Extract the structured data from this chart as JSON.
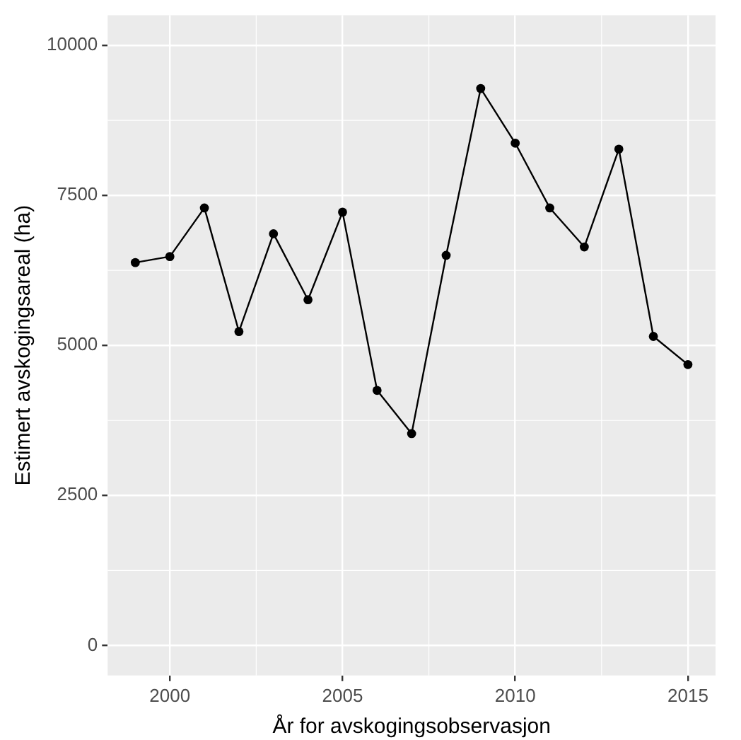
{
  "chart_data": {
    "type": "line",
    "xlabel": "År for avskogingsobservasjon",
    "ylabel": "Estimert avskogingsareal (ha)",
    "x": [
      1999,
      2000,
      2001,
      2002,
      2003,
      2004,
      2005,
      2006,
      2007,
      2008,
      2009,
      2010,
      2011,
      2012,
      2013,
      2014,
      2015
    ],
    "series": [
      {
        "color": "#000000",
        "values": [
          6380,
          6480,
          7290,
          5230,
          6860,
          5760,
          7220,
          4250,
          3530,
          6500,
          9280,
          8370,
          7290,
          6640,
          8270,
          5150,
          4680
        ]
      }
    ],
    "xlim": [
      1998.2,
      2015.8
    ],
    "xticks": [
      2000,
      2005,
      2010,
      2015
    ],
    "ylim": [
      -500,
      10500
    ],
    "yticks": [
      0,
      2500,
      5000,
      7500,
      10000
    ],
    "grid": true,
    "legend": false,
    "marker": "circle",
    "line_style": "solid"
  }
}
